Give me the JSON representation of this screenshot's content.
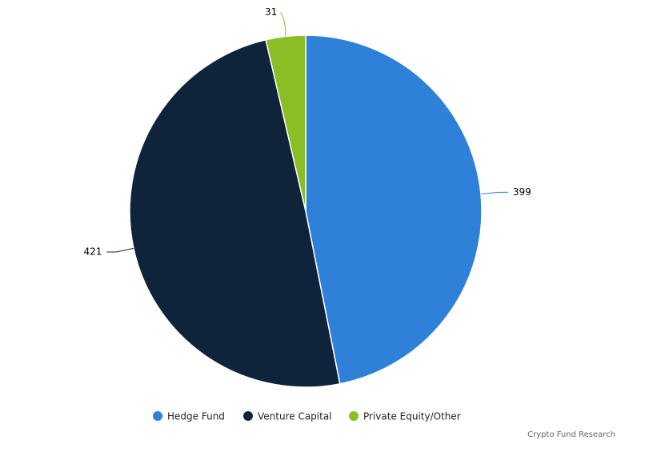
{
  "chart_data": {
    "type": "pie",
    "categories": [
      "Hedge Fund",
      "Venture Capital",
      "Private Equity/Other"
    ],
    "values": [
      399,
      421,
      31
    ],
    "colors": [
      "#2f80d8",
      "#0f233a",
      "#8bbd24"
    ],
    "source": "Crypto Fund Research"
  }
}
